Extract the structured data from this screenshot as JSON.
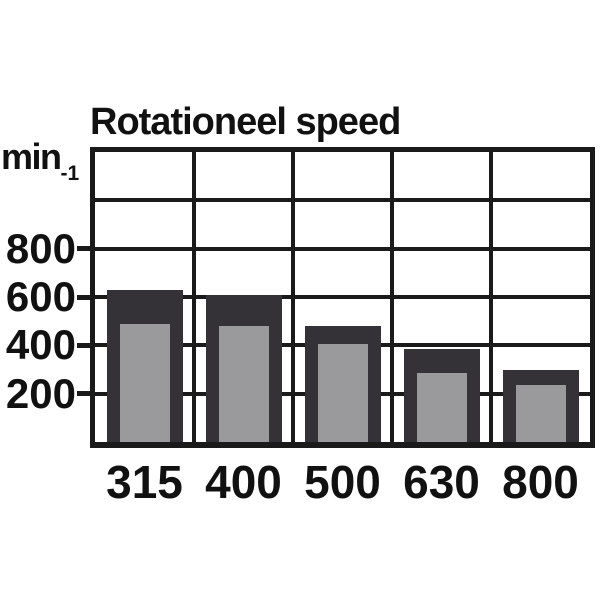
{
  "page": {
    "background_color": "#ffffff",
    "text_color": "#111111"
  },
  "chart_data": {
    "type": "bar",
    "title": "Rotationeel speed",
    "y_unit": {
      "text": "min",
      "sub": "-1"
    },
    "categories": [
      "315",
      "400",
      "500",
      "630",
      "800"
    ],
    "series": [
      {
        "name": "outer-dark",
        "color": "#343236",
        "values": [
          630,
          610,
          480,
          385,
          300
        ]
      },
      {
        "name": "inner-gray",
        "color": "#9a999b",
        "values": [
          490,
          480,
          405,
          285,
          235
        ]
      }
    ],
    "ylim": [
      0,
      1200
    ],
    "gridline_step": 200,
    "ytick_values": [
      800,
      600,
      400,
      200
    ],
    "ytick_labels": [
      "800",
      "600",
      "400",
      "200"
    ],
    "xlabel": "",
    "ylabel": "min-1",
    "grid": "both",
    "legend": "none",
    "line_color": "#1a1a1a"
  }
}
